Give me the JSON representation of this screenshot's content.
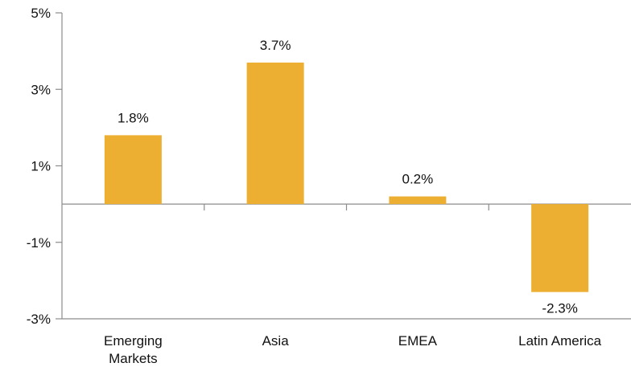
{
  "chart_data": {
    "type": "bar",
    "categories": [
      [
        "Emerging",
        "Markets"
      ],
      [
        "Asia"
      ],
      [
        "EMEA"
      ],
      [
        "Latin America"
      ]
    ],
    "values": [
      1.8,
      3.7,
      0.2,
      -2.3
    ],
    "data_labels": [
      "1.8%",
      "3.7%",
      "0.2%",
      "-2.3%"
    ],
    "ylim": [
      -3,
      5
    ],
    "yticks": [
      5,
      3,
      1,
      -1,
      -3
    ],
    "ytick_labels": [
      "5%",
      "3%",
      "1%",
      "-1%",
      "-3%"
    ],
    "grid": false,
    "colors": {
      "bar": "#EDAF32",
      "axis": "#8c8c8c"
    }
  }
}
